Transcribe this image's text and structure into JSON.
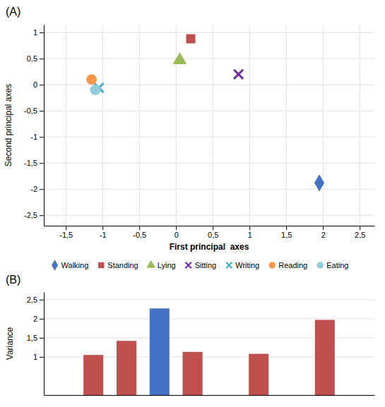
{
  "chart_data": [
    {
      "type": "scatter",
      "title": "(A)",
      "xlabel": "First principal  axes",
      "ylabel": "Second principal axes",
      "series": [
        {
          "name": "Walking",
          "color": "#4472C4",
          "marker": "diamond",
          "x": [
            1.95
          ],
          "values": [
            -1.88
          ]
        },
        {
          "name": "Standing",
          "color": "#C0504D",
          "marker": "square",
          "x": [
            0.2
          ],
          "values": [
            0.88
          ]
        },
        {
          "name": "Lying",
          "color": "#9BBB59",
          "marker": "triangle",
          "x": [
            0.05
          ],
          "values": [
            0.47
          ]
        },
        {
          "name": "Sitting",
          "color": "#7030A0",
          "marker": "x",
          "x": [
            0.85
          ],
          "values": [
            0.2
          ]
        },
        {
          "name": "Writing",
          "color": "#4BACC6",
          "marker": "x",
          "x": [
            -1.05
          ],
          "values": [
            -0.06
          ]
        },
        {
          "name": "Reading",
          "color": "#F79646",
          "marker": "circle",
          "x": [
            -1.15
          ],
          "values": [
            0.1
          ]
        },
        {
          "name": "Eating",
          "color": "#92CDDC",
          "marker": "circle",
          "x": [
            -1.1
          ],
          "values": [
            -0.1
          ]
        }
      ],
      "xlim": [
        -1.8,
        2.7
      ],
      "ylim": [
        -2.7,
        1.15
      ],
      "xticks": [
        {
          "value": -1.5,
          "label": "-1,5"
        },
        -1,
        {
          "value": -0.5,
          "label": "-0,5"
        },
        0,
        {
          "value": 0.5,
          "label": "0,5"
        },
        1,
        {
          "value": 1.5,
          "label": "1,5"
        },
        2,
        {
          "value": 2.5,
          "label": "2,5"
        }
      ],
      "yticks": [
        {
          "value": -2.5,
          "label": "-2,5"
        },
        -2,
        {
          "value": -1.5,
          "label": "-1,5"
        },
        -1,
        {
          "value": -0.5,
          "label": "-0,5"
        },
        0,
        {
          "value": 0.5,
          "label": "0,5"
        },
        1
      ],
      "grid": true,
      "legend": "bottom"
    },
    {
      "type": "bar",
      "title": "(B)",
      "ylabel": "Variance",
      "categories": [
        null,
        null,
        null,
        null,
        null,
        null,
        null,
        null,
        null,
        null
      ],
      "values": [
        0,
        1.05,
        1.42,
        2.27,
        1.13,
        0,
        1.08,
        0,
        1.97,
        0
      ],
      "colors": [
        "#4472C4",
        "#C0504D",
        "#C0504D",
        "#4472C4",
        "#C0504D",
        "#4472C4",
        "#C0504D",
        "#4472C4",
        "#C0504D",
        "#4472C4"
      ],
      "ylim": [
        0,
        2.7
      ],
      "yticks": [
        1,
        {
          "value": 1.5,
          "label": "1,5"
        },
        2,
        {
          "value": 2.5,
          "label": "2,5"
        }
      ],
      "grid": true,
      "tick_labels": "y"
    }
  ]
}
